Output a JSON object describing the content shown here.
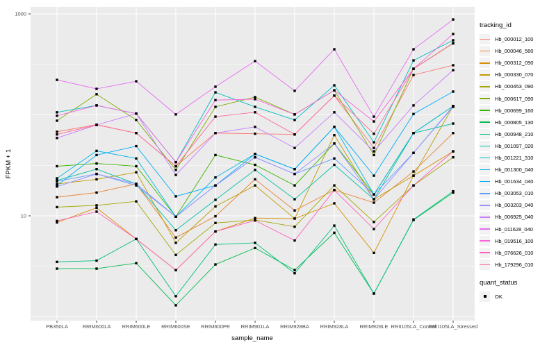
{
  "figure": {
    "legend": {
      "tracking_title": "tracking_id",
      "quant_title": "quant_status",
      "quant_label": "OK"
    }
  },
  "chart_data": {
    "type": "line",
    "title": "",
    "xlabel": "sample_name",
    "ylabel": "FPKM + 1",
    "y_scale": "log10",
    "y_tick_labels": [
      "1000",
      "10"
    ],
    "ylim": [
      0.85,
      1175
    ],
    "grid": true,
    "legend_position": "right",
    "panel_bg": "#EBEBEB",
    "grid_color": "#FFFFFF",
    "point_color": "#000000",
    "categories": [
      "PB350LA",
      "RRIM600LA",
      "RRIM600LE",
      "RRIM600SE",
      "RRIM600PE",
      "RRIM901LA",
      "RRIM928BA",
      "RRIM928LA",
      "RRIM928LE",
      "RRII105LA_Control",
      "RRII105LA_Stressed"
    ],
    "series": [
      {
        "name": "Hb_000012_100",
        "color": "#F8766D",
        "values": [
          68,
          80,
          66,
          31,
          66,
          65,
          64,
          155,
          47,
          248,
          310
        ]
      },
      {
        "name": "Hb_000046_560",
        "color": "#EA8331",
        "values": [
          15.3,
          17,
          20.7,
          6.1,
          9.9,
          23,
          11.3,
          18,
          13.5,
          27.5,
          66
        ]
      },
      {
        "name": "Hb_000312_090",
        "color": "#D89000",
        "values": [
          8.6,
          12,
          5.9,
          2.9,
          7.0,
          9.5,
          9.4,
          13.3,
          4.3,
          25,
          43.5
        ]
      },
      {
        "name": "Hb_000330_070",
        "color": "#C09B00",
        "values": [
          20.7,
          23,
          27,
          5.4,
          12.4,
          20,
          9.4,
          63,
          14.6,
          25,
          122
        ]
      },
      {
        "name": "Hb_000453_090",
        "color": "#A3A500",
        "values": [
          12.2,
          12.7,
          13.9,
          4.1,
          8.5,
          9.1,
          7.8,
          20,
          8.7,
          20,
          38
        ]
      },
      {
        "name": "Hb_000617_090",
        "color": "#7CAE00",
        "values": [
          87.5,
          160,
          89,
          28.5,
          120,
          150,
          101,
          175,
          40,
          286,
          514
        ]
      },
      {
        "name": "Hb_000699_160",
        "color": "#39B600",
        "values": [
          31,
          33,
          31,
          9.8,
          40,
          32,
          20,
          52,
          16.3,
          66,
          122
        ]
      },
      {
        "name": "Hb_000805_130",
        "color": "#00BB4E",
        "values": [
          3.0,
          3.0,
          3.4,
          1.3,
          3.3,
          4.8,
          2.9,
          6.8,
          1.7,
          9.1,
          17
        ]
      },
      {
        "name": "Hb_000948_210",
        "color": "#00BF7D",
        "values": [
          3.5,
          3.6,
          5.9,
          1.6,
          5.2,
          5.4,
          2.7,
          8.0,
          1.7,
          9.2,
          17.5
        ]
      },
      {
        "name": "Hb_001097_020",
        "color": "#00C1A3",
        "values": [
          22.4,
          29,
          20.7,
          7.2,
          14.4,
          28.5,
          14.6,
          32,
          14.6,
          66,
          82
        ]
      },
      {
        "name": "Hb_001221_310",
        "color": "#00BFC4",
        "values": [
          106,
          124,
          103,
          34,
          167,
          120,
          89,
          196,
          53.5,
          346,
          548
        ]
      },
      {
        "name": "Hb_001300_040",
        "color": "#00B8E5",
        "values": [
          23.5,
          44,
          37,
          9.8,
          24,
          41,
          29,
          76,
          16.3,
          66,
          122
        ]
      },
      {
        "name": "Hb_001634_040",
        "color": "#00ACFC",
        "values": [
          20,
          40,
          49,
          15.6,
          20,
          41,
          29,
          76,
          25,
          102,
          170
        ]
      },
      {
        "name": "Hb_003053_010",
        "color": "#619CFF",
        "values": [
          22,
          26,
          20,
          9.8,
          20,
          38,
          26,
          37,
          16.3,
          42,
          122
        ]
      },
      {
        "name": "Hb_003203_040",
        "color": "#9590FF",
        "values": [
          19.5,
          26,
          20.7,
          9.8,
          20,
          38,
          26,
          52,
          14.6,
          42,
          120
        ]
      },
      {
        "name": "Hb_006925_040",
        "color": "#C77CFF",
        "values": [
          59,
          79.5,
          103,
          25.4,
          66,
          76,
          47,
          106,
          43.5,
          124,
          277
        ]
      },
      {
        "name": "Hb_011628_040",
        "color": "#E76BF3",
        "values": [
          222,
          181,
          215,
          101,
          190,
          341,
          173,
          446,
          96,
          446,
          880
        ]
      },
      {
        "name": "Hb_019516_100",
        "color": "#FA62DB",
        "values": [
          98,
          124,
          103,
          34,
          140,
          143,
          101,
          175,
          86,
          286,
          632
        ]
      },
      {
        "name": "Hb_076626_010",
        "color": "#FF62BC",
        "values": [
          8.9,
          11,
          5.9,
          2.9,
          7.0,
          9.0,
          5.7,
          18,
          7.4,
          20,
          43.5
        ]
      },
      {
        "name": "Hb_179296_010",
        "color": "#FF6A98",
        "values": [
          64,
          79.5,
          66,
          31,
          96,
          106,
          64,
          155,
          65,
          286,
          510
        ]
      }
    ]
  }
}
